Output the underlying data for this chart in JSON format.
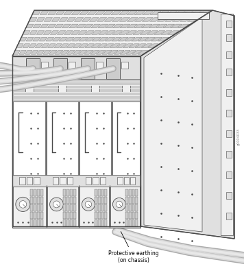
{
  "bg_color": "#ffffff",
  "line_color": "#4a4a4a",
  "fill_white": "#ffffff",
  "fill_light": "#f0f0f0",
  "fill_medium": "#e0e0e0",
  "fill_gray": "#cccccc",
  "fill_dark": "#bbbbbb",
  "fill_side": "#e8e8e8",
  "cable_fill": "#d8d8d8",
  "cable_edge": "#aaaaaa",
  "annotation_text": "Protective earthing\n(on chassis)",
  "watermark_text": "g0004033",
  "figw": 3.56,
  "figh": 3.98,
  "dpi": 100
}
